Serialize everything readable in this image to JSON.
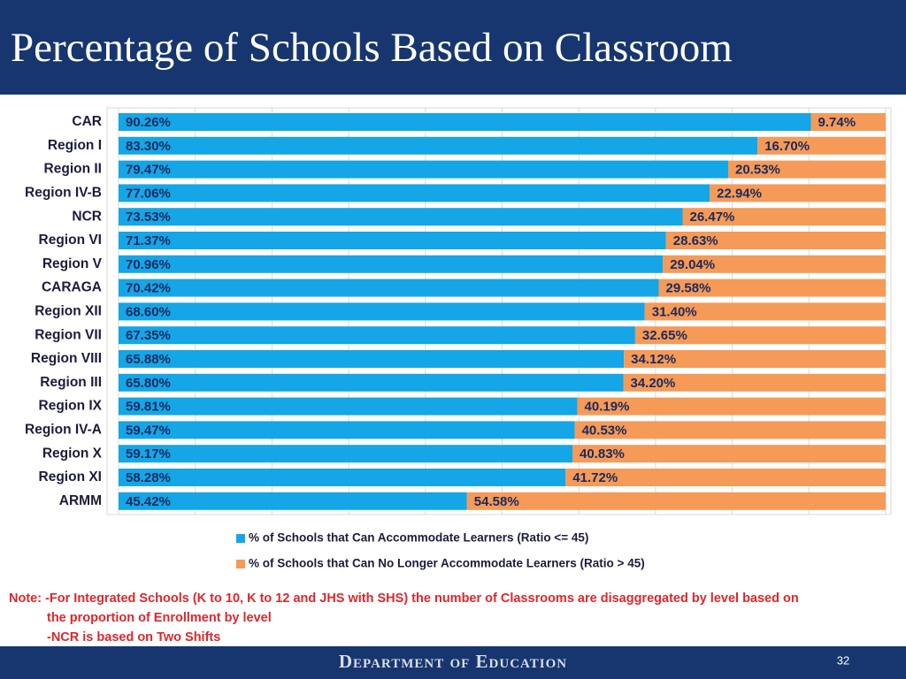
{
  "header": {
    "title": "Percentage of Schools Based on Classroom"
  },
  "chart_data": {
    "type": "stacked_bar_horizontal",
    "categories": [
      "CAR",
      "Region I",
      "Region II",
      "Region IV-B",
      "NCR",
      "Region VI",
      "Region V",
      "CARAGA",
      "Region XII",
      "Region VII",
      "Region VIII",
      "Region III",
      "Region IX",
      "Region IV-A",
      "Region X",
      "Region XI",
      "ARMM"
    ],
    "series": [
      {
        "name": "% of  Schools that Can Accommodate Learners (Ratio <= 45)",
        "color": "#14a6e6",
        "values": [
          90.26,
          83.3,
          79.47,
          77.06,
          73.53,
          71.37,
          70.96,
          70.42,
          68.6,
          67.35,
          65.88,
          65.8,
          59.81,
          59.47,
          59.17,
          58.28,
          45.42
        ],
        "value_labels": [
          "90.26%",
          "83.30%",
          "79.47%",
          "77.06%",
          "73.53%",
          "71.37%",
          "70.96%",
          "70.42%",
          "68.60%",
          "67.35%",
          "65.88%",
          "65.80%",
          "59.81%",
          "59.47%",
          "59.17%",
          "58.28%",
          "45.42%"
        ]
      },
      {
        "name": "% of Schools that Can No Longer Accommodate Learners (Ratio > 45)",
        "color": "#f59a57",
        "values": [
          9.74,
          16.7,
          20.53,
          22.94,
          26.47,
          28.63,
          29.04,
          29.58,
          31.4,
          32.65,
          34.12,
          34.2,
          40.19,
          40.53,
          40.83,
          41.72,
          54.58
        ],
        "value_labels": [
          "9.74%",
          "16.70%",
          "20.53%",
          "22.94%",
          "26.47%",
          "28.63%",
          "29.04%",
          "29.58%",
          "31.40%",
          "32.65%",
          "34.12%",
          "34.20%",
          "40.19%",
          "40.53%",
          "40.83%",
          "41.72%",
          "54.58%"
        ]
      }
    ],
    "xlim": [
      0,
      100
    ],
    "xticks": [
      0,
      10,
      20,
      30,
      40,
      50,
      60,
      70,
      80,
      90,
      100
    ],
    "grid": true
  },
  "note": {
    "lines": [
      "Note: -For Integrated Schools (K to 10, K to 12 and JHS with SHS) the number of Classrooms are disaggregated by level based on",
      "the proportion of Enrollment by level",
      "-NCR is based on Two Shifts"
    ]
  },
  "footer": {
    "department": "Department of Education",
    "page": "32"
  }
}
